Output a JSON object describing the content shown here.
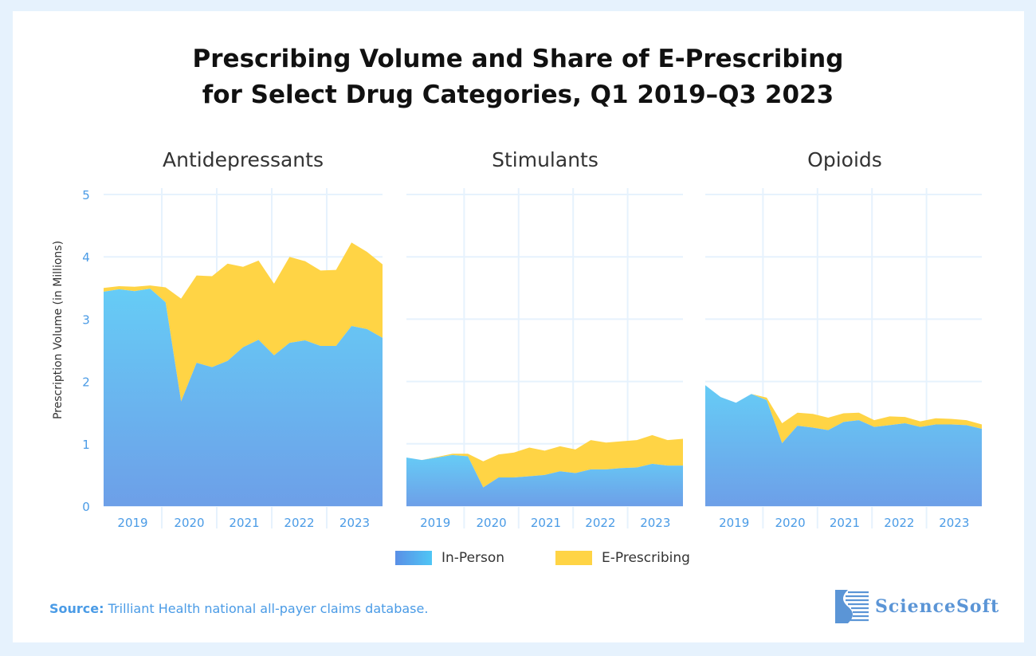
{
  "title_line1": "Prescribing Volume and Share of E-Prescribing",
  "title_line2": "for Select Drug Categories, Q1 2019–Q3 2023",
  "source_label": "Source:",
  "source_text": "Trilliant Health national all-payer claims database.",
  "logo_text": "ScienceSoft",
  "colors": {
    "in_person_top": "#66ccf6",
    "in_person_bottom": "#6d9fe8",
    "e_prescribing": "#ffd445",
    "grid": "#e6f2fd",
    "tick": "#4a9be6"
  },
  "legend": [
    {
      "label": "In-Person"
    },
    {
      "label": "E-Prescribing"
    }
  ],
  "chart_data": [
    {
      "type": "area",
      "stacked": true,
      "title": "Antidepressants",
      "ylabel": "Prescription Volume (in Millions)",
      "ylim": [
        0,
        5
      ],
      "yticks": [
        "0",
        "1",
        "2",
        "3",
        "4",
        "5"
      ],
      "x": [
        "Q1 2019",
        "Q2 2019",
        "Q3 2019",
        "Q4 2019",
        "Q1 2020",
        "Q2 2020",
        "Q3 2020",
        "Q4 2020",
        "Q1 2021",
        "Q2 2021",
        "Q3 2021",
        "Q4 2021",
        "Q1 2022",
        "Q2 2022",
        "Q3 2022",
        "Q4 2022",
        "Q1 2023",
        "Q2 2023",
        "Q3 2023"
      ],
      "xtick_labels": [
        "2019",
        "2020",
        "2021",
        "2022",
        "2023"
      ],
      "grid": true,
      "series": [
        {
          "name": "In-Person",
          "values": [
            3.44,
            3.48,
            3.45,
            3.49,
            3.27,
            1.68,
            2.3,
            2.23,
            2.33,
            2.55,
            2.67,
            2.42,
            2.62,
            2.66,
            2.57,
            2.57,
            2.89,
            2.84,
            2.7
          ]
        },
        {
          "name": "E-Prescribing",
          "values": [
            0.06,
            0.05,
            0.07,
            0.05,
            0.24,
            1.65,
            1.4,
            1.46,
            1.56,
            1.29,
            1.27,
            1.15,
            1.38,
            1.27,
            1.21,
            1.22,
            1.34,
            1.24,
            1.18
          ]
        }
      ]
    },
    {
      "type": "area",
      "stacked": true,
      "title": "Stimulants",
      "ylim": [
        0,
        5
      ],
      "x": [
        "Q1 2019",
        "Q2 2019",
        "Q3 2019",
        "Q4 2019",
        "Q1 2020",
        "Q2 2020",
        "Q3 2020",
        "Q4 2020",
        "Q1 2021",
        "Q2 2021",
        "Q3 2021",
        "Q4 2021",
        "Q1 2022",
        "Q2 2022",
        "Q3 2022",
        "Q4 2022",
        "Q1 2023",
        "Q2 2023",
        "Q3 2023"
      ],
      "xtick_labels": [
        "2019",
        "2020",
        "2021",
        "2022",
        "2023"
      ],
      "grid": true,
      "series": [
        {
          "name": "In-Person",
          "values": [
            0.78,
            0.74,
            0.78,
            0.82,
            0.8,
            0.3,
            0.46,
            0.46,
            0.48,
            0.5,
            0.56,
            0.53,
            0.59,
            0.59,
            0.61,
            0.62,
            0.68,
            0.65,
            0.65
          ]
        },
        {
          "name": "E-Prescribing",
          "values": [
            0.0,
            0.0,
            0.01,
            0.02,
            0.04,
            0.42,
            0.37,
            0.4,
            0.46,
            0.39,
            0.4,
            0.38,
            0.47,
            0.43,
            0.43,
            0.44,
            0.46,
            0.41,
            0.43
          ]
        }
      ]
    },
    {
      "type": "area",
      "stacked": true,
      "title": "Opioids",
      "ylim": [
        0,
        5
      ],
      "x": [
        "Q1 2019",
        "Q2 2019",
        "Q3 2019",
        "Q4 2019",
        "Q1 2020",
        "Q2 2020",
        "Q3 2020",
        "Q4 2020",
        "Q1 2021",
        "Q2 2021",
        "Q3 2021",
        "Q4 2021",
        "Q1 2022",
        "Q2 2022",
        "Q3 2022",
        "Q4 2022",
        "Q1 2023",
        "Q2 2023",
        "Q3 2023"
      ],
      "xtick_labels": [
        "2019",
        "2020",
        "2021",
        "2022",
        "2023"
      ],
      "grid": true,
      "series": [
        {
          "name": "In-Person",
          "values": [
            1.94,
            1.75,
            1.66,
            1.8,
            1.7,
            1.01,
            1.29,
            1.26,
            1.22,
            1.35,
            1.38,
            1.27,
            1.3,
            1.33,
            1.27,
            1.31,
            1.31,
            1.3,
            1.24
          ]
        },
        {
          "name": "E-Prescribing",
          "values": [
            0.0,
            0.0,
            0.0,
            0.0,
            0.04,
            0.32,
            0.21,
            0.22,
            0.2,
            0.14,
            0.12,
            0.11,
            0.14,
            0.1,
            0.09,
            0.1,
            0.09,
            0.08,
            0.07
          ]
        }
      ]
    }
  ]
}
